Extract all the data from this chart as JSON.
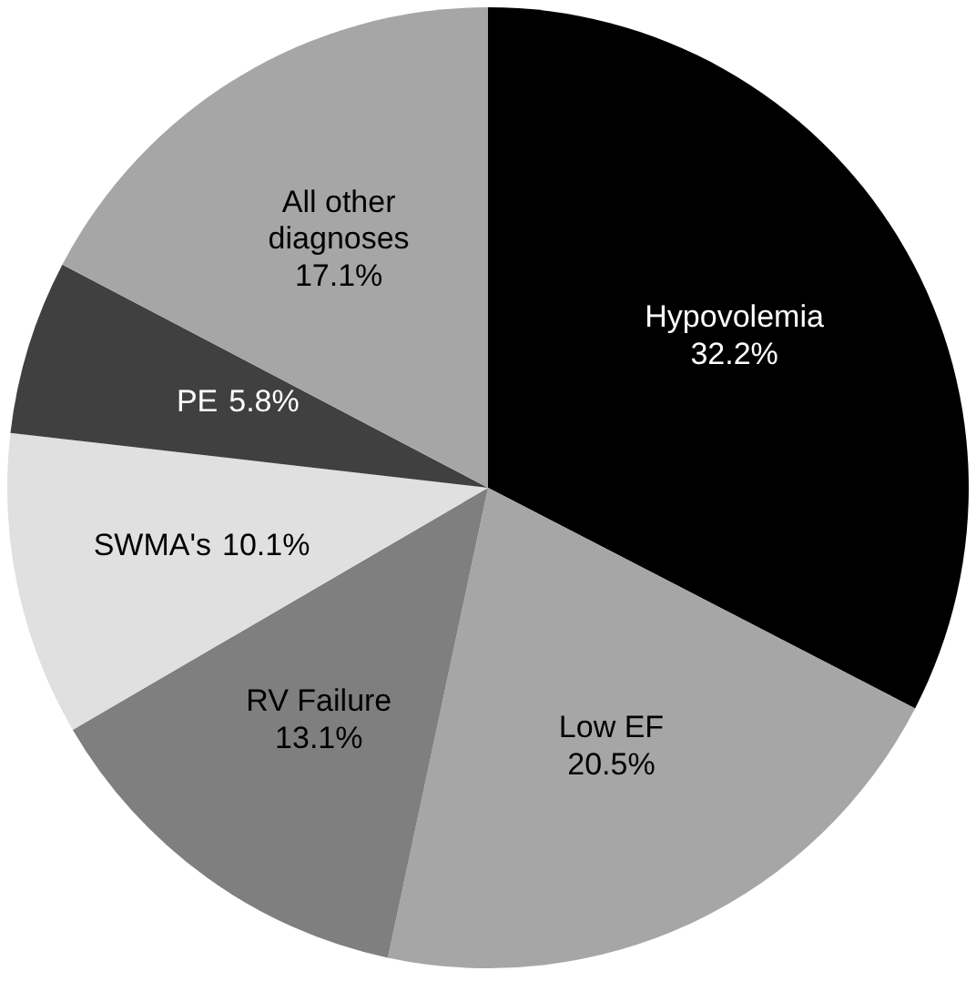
{
  "chart_data": {
    "type": "pie",
    "categories": [
      "Hypovolemia",
      "Low EF",
      "RV Failure",
      "SWMA's",
      "PE",
      "All other diagnoses"
    ],
    "values": [
      32.2,
      20.5,
      13.1,
      10.1,
      5.8,
      17.1
    ],
    "colors": [
      "#000000",
      "#a6a6a6",
      "#7f7f7f",
      "#e0e0e0",
      "#404040",
      "#a6a6a6"
    ],
    "value_labels": [
      "32.2%",
      "20.5%",
      "13.1%",
      "10.1%",
      "5.8%",
      "17.1%"
    ]
  }
}
